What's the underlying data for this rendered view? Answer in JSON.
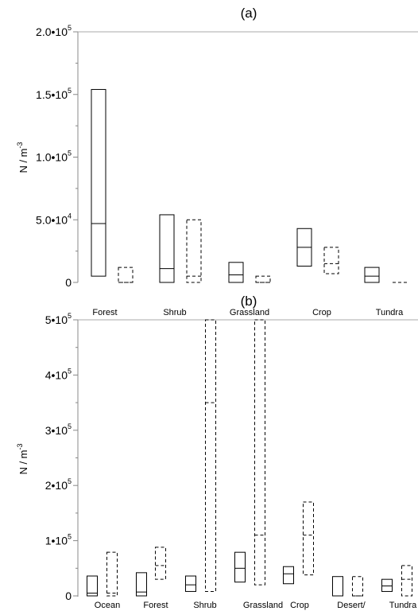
{
  "chart_data": [
    {
      "type": "box",
      "panel_title": "(a)",
      "ylabel": "N / m",
      "ylabel_exp": "-3",
      "ylim": [
        0,
        200000
      ],
      "yticks": [
        {
          "value": 0,
          "mant": "0",
          "exp": ""
        },
        {
          "value": 50000,
          "mant": "5.0•10",
          "exp": "4"
        },
        {
          "value": 100000,
          "mant": "1.0•10",
          "exp": "5"
        },
        {
          "value": 150000,
          "mant": "1.5•10",
          "exp": "5"
        },
        {
          "value": 200000,
          "mant": "2.0•10",
          "exp": "5"
        }
      ],
      "categories": [
        "Forest",
        "Shrub",
        "Grassland",
        "Crop",
        "Tundra"
      ],
      "series": [
        {
          "style": "solid",
          "boxes": [
            {
              "category": "Forest",
              "low": 5000,
              "median": 47000,
              "high": 154000
            },
            {
              "category": "Shrub",
              "low": 0,
              "median": 11000,
              "high": 54000
            },
            {
              "category": "Grassland",
              "low": 0,
              "median": 6000,
              "high": 16000
            },
            {
              "category": "Crop",
              "low": 13000,
              "median": 28000,
              "high": 43000
            },
            {
              "category": "Tundra",
              "low": 0,
              "median": 5000,
              "high": 12000
            }
          ]
        },
        {
          "style": "dashed",
          "boxes": [
            {
              "category": "Forest",
              "low": 0,
              "median": 0,
              "high": 12000
            },
            {
              "category": "Shrub",
              "low": 0,
              "median": 5000,
              "high": 50000
            },
            {
              "category": "Grassland",
              "low": 0,
              "median": 0,
              "high": 5000
            },
            {
              "category": "Crop",
              "low": 7000,
              "median": 15000,
              "high": 28000
            },
            {
              "category": "Tundra",
              "low": 0,
              "median": 0,
              "high": 0
            }
          ]
        }
      ]
    },
    {
      "type": "box",
      "panel_title": "(b)",
      "ylabel": "N / m",
      "ylabel_exp": "-3",
      "ylim": [
        0,
        500000
      ],
      "yticks": [
        {
          "value": 0,
          "mant": "0",
          "exp": ""
        },
        {
          "value": 100000,
          "mant": "1•10",
          "exp": "5"
        },
        {
          "value": 200000,
          "mant": "2•10",
          "exp": "5"
        },
        {
          "value": 300000,
          "mant": "3•10",
          "exp": "5"
        },
        {
          "value": 400000,
          "mant": "4•10",
          "exp": "5"
        },
        {
          "value": 500000,
          "mant": "5•10",
          "exp": "5"
        }
      ],
      "categories": [
        "Ocean",
        "Forest",
        "Shrub",
        "Grassland",
        "Crop",
        "Desert/",
        "Tundra"
      ],
      "series": [
        {
          "style": "solid",
          "boxes": [
            {
              "category": "Ocean",
              "low": 0,
              "median": 5000,
              "high": 36000
            },
            {
              "category": "Forest",
              "low": 0,
              "median": 7000,
              "high": 42000
            },
            {
              "category": "Shrub",
              "low": 8000,
              "median": 20000,
              "high": 36000
            },
            {
              "category": "Grassland",
              "low": 25000,
              "median": 50000,
              "high": 79000
            },
            {
              "category": "Crop",
              "low": 22000,
              "median": 40000,
              "high": 53000
            },
            {
              "category": "Desert/",
              "low": 0,
              "median": 0,
              "high": 35000
            },
            {
              "category": "Tundra",
              "low": 8000,
              "median": 18000,
              "high": 30000
            }
          ]
        },
        {
          "style": "dashed",
          "boxes": [
            {
              "category": "Ocean",
              "low": 0,
              "median": 5000,
              "high": 79000
            },
            {
              "category": "Forest",
              "low": 30000,
              "median": 55000,
              "high": 88000
            },
            {
              "category": "Shrub",
              "low": 8000,
              "median": 350000,
              "high": 500000
            },
            {
              "category": "Grassland",
              "low": 20000,
              "median": 110000,
              "high": 500000
            },
            {
              "category": "Crop",
              "low": 38000,
              "median": 110000,
              "high": 170000
            },
            {
              "category": "Desert/",
              "low": 0,
              "median": 0,
              "high": 35000
            },
            {
              "category": "Tundra",
              "low": 0,
              "median": 30000,
              "high": 55000
            }
          ]
        }
      ]
    }
  ]
}
